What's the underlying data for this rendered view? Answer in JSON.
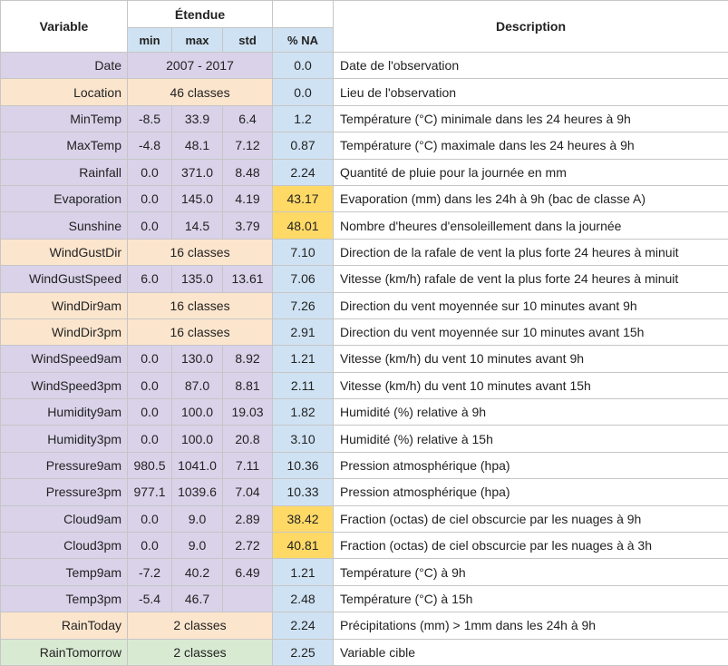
{
  "headers": {
    "variable": "Variable",
    "etendue": "Étendue",
    "min": "min",
    "max": "max",
    "std": "std",
    "na": "% NA",
    "description": "Description"
  },
  "colors": {
    "numeric": "#d9d2e9",
    "categorical": "#fce5cd",
    "target": "#d9ead3",
    "na_cell": "#cfe2f3",
    "na_high": "#ffd966"
  },
  "rows": [
    {
      "name": "Date",
      "kind": "span",
      "range": "2007 - 2017",
      "na": "0.0",
      "desc": "Date de l'observation"
    },
    {
      "name": "Location",
      "kind": "class",
      "range": "46 classes",
      "na": "0.0",
      "desc": "Lieu de l'observation"
    },
    {
      "name": "MinTemp",
      "kind": "num",
      "min": "-8.5",
      "max": "33.9",
      "std": "6.4",
      "na": "1.2",
      "desc": "Température (°C) minimale dans les 24 heures à 9h"
    },
    {
      "name": "MaxTemp",
      "kind": "num",
      "min": "-4.8",
      "max": "48.1",
      "std": "7.12",
      "na": "0.87",
      "desc": "Température (°C) maximale dans les 24 heures à 9h"
    },
    {
      "name": "Rainfall",
      "kind": "num",
      "min": "0.0",
      "max": "371.0",
      "std": "8.48",
      "na": "2.24",
      "desc": "Quantité de pluie pour la journée en mm"
    },
    {
      "name": "Evaporation",
      "kind": "num",
      "min": "0.0",
      "max": "145.0",
      "std": "4.19",
      "na": "43.17",
      "high": true,
      "desc": "Evaporation (mm) dans les 24h à 9h (bac de classe A)"
    },
    {
      "name": "Sunshine",
      "kind": "num",
      "min": "0.0",
      "max": "14.5",
      "std": "3.79",
      "na": "48.01",
      "high": true,
      "desc": "Nombre d'heures d'ensoleillement dans la journée"
    },
    {
      "name": "WindGustDir",
      "kind": "class",
      "range": "16 classes",
      "na": "7.10",
      "desc": "Direction de la rafale de vent la plus forte 24 heures à minuit"
    },
    {
      "name": "WindGustSpeed",
      "kind": "num",
      "min": "6.0",
      "max": "135.0",
      "std": "13.61",
      "na": "7.06",
      "desc": "Vitesse (km/h) rafale de vent la plus forte 24 heures à minuit"
    },
    {
      "name": "WindDir9am",
      "kind": "class",
      "range": "16 classes",
      "na": "7.26",
      "desc": "Direction du vent moyennée sur 10 minutes avant 9h"
    },
    {
      "name": "WindDir3pm",
      "kind": "class",
      "range": "16 classes",
      "na": "2.91",
      "desc": "Direction du vent moyennée sur 10 minutes avant 15h"
    },
    {
      "name": "WindSpeed9am",
      "kind": "num",
      "min": "0.0",
      "max": "130.0",
      "std": "8.92",
      "na": "1.21",
      "desc": "Vitesse (km/h) du vent 10 minutes avant 9h"
    },
    {
      "name": "WindSpeed3pm",
      "kind": "num",
      "min": "0.0",
      "max": "87.0",
      "std": "8.81",
      "na": "2.11",
      "desc": "Vitesse (km/h) du vent 10 minutes avant 15h"
    },
    {
      "name": "Humidity9am",
      "kind": "num",
      "min": "0.0",
      "max": "100.0",
      "std": "19.03",
      "na": "1.82",
      "desc": "Humidité (%) relative à 9h"
    },
    {
      "name": "Humidity3pm",
      "kind": "num",
      "min": "0.0",
      "max": "100.0",
      "std": "20.8",
      "na": "3.10",
      "desc": "Humidité (%) relative à 15h"
    },
    {
      "name": "Pressure9am",
      "kind": "num",
      "min": "980.5",
      "max": "1041.0",
      "std": "7.11",
      "na": "10.36",
      "desc": "Pression atmosphérique (hpa)"
    },
    {
      "name": "Pressure3pm",
      "kind": "num",
      "min": "977.1",
      "max": "1039.6",
      "std": "7.04",
      "na": "10.33",
      "desc": "Pression atmosphérique (hpa)"
    },
    {
      "name": "Cloud9am",
      "kind": "num",
      "min": "0.0",
      "max": "9.0",
      "std": "2.89",
      "na": "38.42",
      "high": true,
      "desc": "Fraction (octas) de ciel obscurcie par les nuages à 9h"
    },
    {
      "name": "Cloud3pm",
      "kind": "num",
      "min": "0.0",
      "max": "9.0",
      "std": "2.72",
      "na": "40.81",
      "high": true,
      "desc": "Fraction (octas) de ciel obscurcie par les nuages à à 3h"
    },
    {
      "name": "Temp9am",
      "kind": "num",
      "min": "-7.2",
      "max": "40.2",
      "std": "6.49",
      "na": "1.21",
      "desc": "Température (°C) à 9h"
    },
    {
      "name": "Temp3pm",
      "kind": "num",
      "min": "-5.4",
      "max": "46.7",
      "std": "",
      "na": "2.48",
      "desc": "Température (°C) à 15h"
    },
    {
      "name": "RainToday",
      "kind": "class",
      "range": "2 classes",
      "na": "2.24",
      "desc": "Précipitations (mm) > 1mm dans les 24h à 9h"
    },
    {
      "name": "RainTomorrow",
      "kind": "target",
      "range": "2 classes",
      "na": "2.25",
      "desc": "Variable cible"
    }
  ]
}
